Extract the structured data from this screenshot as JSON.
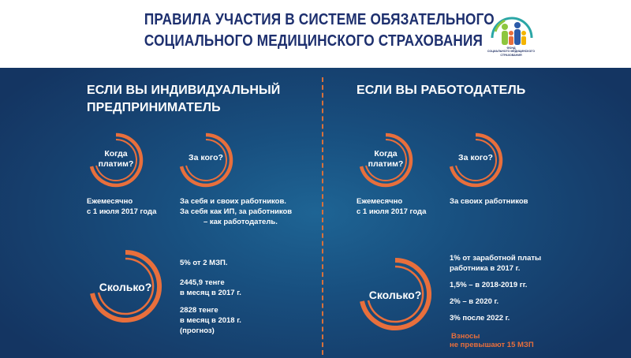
{
  "header": {
    "title_line1": "ПРАВИЛА УЧАСТИЯ В СИСТЕМЕ ОБЯЗАТЕЛЬНОГО",
    "title_line2": "СОЦИАЛЬНОГО МЕДИЦИНСКОГО СТРАХОВАНИЯ",
    "logo": {
      "icon": "family-figures-icon",
      "text_line1": "ФОНД",
      "text_line2": "СОЦИАЛЬНОГО МЕДИЦИНСКОГО",
      "text_line3": "СТРАХОВАНИЯ",
      "colors": [
        "#8dc63f",
        "#e86f3c",
        "#2aa6a6",
        "#2b5aa8"
      ]
    }
  },
  "left": {
    "heading_line1": "ЕСЛИ ВЫ ИНДИВИДУАЛЬНЫЙ",
    "heading_line2": "ПРЕДПРИНИМАТЕЛЬ",
    "when": {
      "ring_line1": "Когда",
      "ring_line2": "платим?",
      "text_line1": "Ежемесячно",
      "text_line2": "с 1 июля 2017 года"
    },
    "who": {
      "ring": "За кого?",
      "text_line1": "За себя и своих работников.",
      "text_line2": "За себя как ИП, за работников",
      "text_line3": "– как работодатель."
    },
    "how_much": {
      "ring": "Сколько?",
      "p1": "5% от 2 МЗП.",
      "p2_line1": "2445,9 тенге",
      "p2_line2": "в месяц в 2017 г.",
      "p3_line1": "2828 тенге",
      "p3_line2": "в месяц в 2018 г.",
      "p3_line3": "(прогноз)"
    }
  },
  "right": {
    "heading": "ЕСЛИ ВЫ РАБОТОДАТЕЛЬ",
    "when": {
      "ring_line1": "Когда",
      "ring_line2": "платим?",
      "text_line1": "Ежемесячно",
      "text_line2": "с 1 июля 2017 года"
    },
    "who": {
      "ring": "За кого?",
      "text": "За своих работников"
    },
    "how_much": {
      "ring": "Сколько?",
      "p1_line1": "1% от заработной платы",
      "p1_line2": "работника в 2017 г.",
      "p2": "1,5% – в 2018-2019 гг.",
      "p3": "2% – в 2020 г.",
      "p4": "3% после 2022 г.",
      "note_line1": "Взносы",
      "note_line2": "не превышают 15 МЗП"
    }
  },
  "colors": {
    "title": "#1d2f6e",
    "background": "#184f7f",
    "accent": "#e86f3c",
    "text": "#ffffff"
  }
}
